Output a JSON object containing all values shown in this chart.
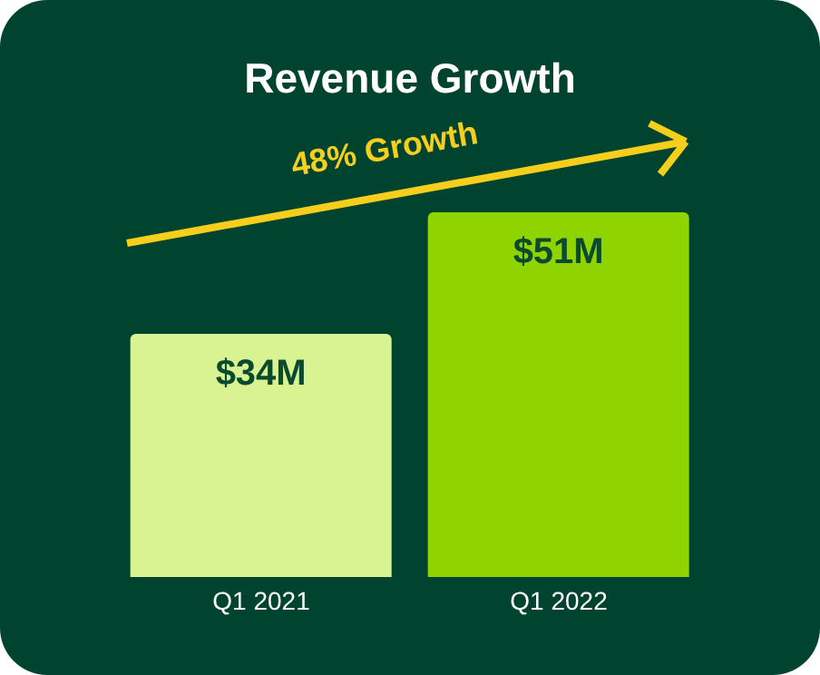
{
  "chart_data": {
    "type": "bar",
    "title": "Revenue Growth",
    "categories": [
      "Q1 2021",
      "Q1 2022"
    ],
    "values": [
      34,
      51
    ],
    "colors": [
      "#d9f393",
      "#8fd400"
    ],
    "value_labels": [
      "$34M",
      "$51M"
    ],
    "annotations": [
      "48% Growth"
    ],
    "grid": false,
    "legend": false
  }
}
